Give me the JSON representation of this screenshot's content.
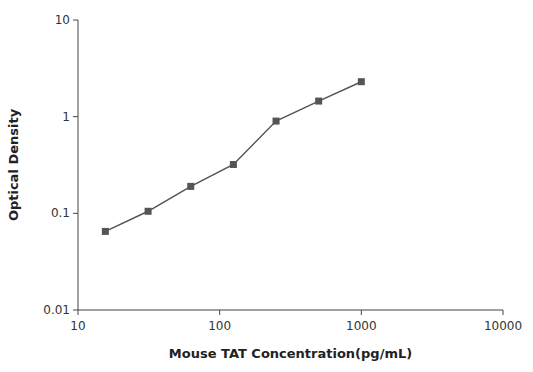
{
  "chart_data": {
    "type": "line",
    "x": [
      15.6,
      31.25,
      62.5,
      125,
      250,
      500,
      1000
    ],
    "values": [
      0.065,
      0.105,
      0.19,
      0.32,
      0.9,
      1.45,
      2.3
    ],
    "xlabel": "Mouse TAT Concentration(pg/mL)",
    "ylabel": "Optical Density",
    "xlim": [
      10,
      10000
    ],
    "ylim": [
      0.01,
      10
    ],
    "xticks": [
      10,
      100,
      1000,
      10000
    ],
    "yticks": [
      0.01,
      0.1,
      1,
      10
    ],
    "log": true,
    "grid": false,
    "color": "#555555",
    "marker": "square"
  }
}
